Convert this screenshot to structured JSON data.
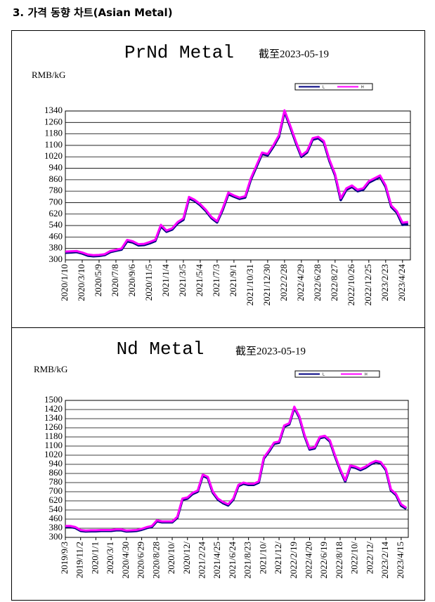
{
  "heading": "3. 가격 동향 차트(Asian Metal)",
  "chart_data": [
    {
      "type": "line",
      "title": "PrNd Metal",
      "subtitle": "截至2023-05-19",
      "y_label": "RMB/kG",
      "categories": [
        "2020/1/10",
        null,
        null,
        "2020/3/10",
        null,
        null,
        "2020/5/9",
        null,
        null,
        "2020/7/8",
        null,
        null,
        "2020/9/6",
        null,
        null,
        "2020/11/5",
        null,
        null,
        "2021/1/4",
        null,
        null,
        "2021/3/5",
        null,
        null,
        "2021/5/4",
        null,
        null,
        "2021/7/3",
        null,
        null,
        "2021/9/1",
        null,
        null,
        "2021/10/31",
        null,
        null,
        "2021/12/30",
        null,
        null,
        "2022/2/28",
        null,
        null,
        "2022/4/29",
        null,
        null,
        "2022/6/28",
        null,
        null,
        "2022/8/27",
        null,
        null,
        "2022/10/26",
        null,
        null,
        "2022/12/25",
        null,
        null,
        "2023/2/23",
        null,
        null,
        "2023/4/24",
        null
      ],
      "series": [
        {
          "name": "L",
          "color": "#000080",
          "values": [
            350,
            352,
            355,
            345,
            330,
            326,
            328,
            334,
            355,
            364,
            372,
            430,
            422,
            402,
            404,
            416,
            432,
            535,
            497,
            512,
            556,
            580,
            730,
            712,
            682,
            642,
            592,
            562,
            650,
            760,
            742,
            727,
            736,
            860,
            950,
            1040,
            1030,
            1090,
            1160,
            1335,
            1230,
            1120,
            1020,
            1050,
            1140,
            1150,
            1120,
            990,
            890,
            718,
            790,
            810,
            780,
            790,
            840,
            860,
            880,
            810,
            670,
            630,
            545,
            550
          ]
        },
        {
          "name": "H",
          "color": "#ff00ff",
          "values": [
            358,
            360,
            362,
            352,
            338,
            333,
            335,
            340,
            362,
            370,
            380,
            440,
            430,
            410,
            412,
            425,
            440,
            545,
            505,
            520,
            565,
            590,
            740,
            720,
            690,
            650,
            600,
            570,
            660,
            770,
            750,
            735,
            745,
            870,
            960,
            1050,
            1040,
            1100,
            1170,
            1345,
            1240,
            1130,
            1030,
            1060,
            1150,
            1160,
            1130,
            1000,
            900,
            730,
            800,
            820,
            790,
            800,
            850,
            870,
            890,
            820,
            680,
            640,
            560,
            565
          ]
        }
      ],
      "ylim": [
        300,
        1340
      ],
      "yticks": [
        300,
        380,
        460,
        540,
        620,
        700,
        780,
        860,
        940,
        1020,
        1100,
        1180,
        1260,
        1340
      ],
      "grid": true
    },
    {
      "type": "line",
      "title": "Nd Metal",
      "subtitle": "截至2023-05-19",
      "y_label": "RMB/kG",
      "categories": [
        "2019/9/3",
        null,
        null,
        "2019/11/2",
        null,
        null,
        "2020/1/1",
        null,
        null,
        "2020/3/1",
        null,
        null,
        "2020/4/30",
        null,
        null,
        "2020/6/29",
        null,
        null,
        "2020/8/28",
        null,
        null,
        "2020/10/",
        null,
        null,
        "2020/12/",
        null,
        null,
        "2021/2/24",
        null,
        null,
        "2021/4/25",
        null,
        null,
        "2021/6/24",
        null,
        null,
        "2021/8/23",
        null,
        null,
        "2021/10/",
        null,
        null,
        "2021/12/",
        null,
        null,
        "2022/2/19",
        null,
        null,
        "2022/4/20",
        null,
        null,
        "2022/6/19",
        null,
        null,
        "2022/8/18",
        null,
        null,
        "2022/10/",
        null,
        null,
        "2022/12/",
        null,
        null,
        "2023/2/14",
        null,
        null,
        "2023/4/15",
        null
      ],
      "series": [
        {
          "name": "L",
          "color": "#000080",
          "values": [
            392,
            392,
            382,
            357,
            352,
            354,
            354,
            357,
            357,
            357,
            362,
            362,
            352,
            354,
            357,
            367,
            382,
            392,
            442,
            432,
            432,
            432,
            472,
            630,
            640,
            680,
            700,
            840,
            820,
            690,
            630,
            600,
            580,
            630,
            750,
            770,
            760,
            760,
            780,
            990,
            1050,
            1120,
            1130,
            1270,
            1290,
            1435,
            1350,
            1190,
            1070,
            1080,
            1170,
            1180,
            1140,
            1010,
            890,
            790,
            920,
            910,
            890,
            910,
            940,
            960,
            950,
            890,
            710,
            670,
            578,
            550
          ]
        },
        {
          "name": "H",
          "color": "#ff00ff",
          "values": [
            400,
            400,
            390,
            365,
            360,
            362,
            362,
            365,
            365,
            365,
            370,
            370,
            360,
            362,
            365,
            375,
            390,
            400,
            450,
            440,
            440,
            440,
            480,
            640,
            650,
            690,
            710,
            850,
            830,
            700,
            640,
            610,
            590,
            640,
            760,
            780,
            770,
            770,
            790,
            1000,
            1060,
            1130,
            1140,
            1280,
            1300,
            1445,
            1360,
            1200,
            1080,
            1090,
            1180,
            1190,
            1150,
            1020,
            900,
            800,
            930,
            920,
            900,
            920,
            950,
            970,
            960,
            900,
            720,
            680,
            590,
            560
          ]
        }
      ],
      "ylim": [
        300,
        1500
      ],
      "yticks": [
        300,
        380,
        460,
        540,
        620,
        700,
        780,
        860,
        940,
        1020,
        1100,
        1180,
        1260,
        1340,
        1420,
        1500
      ],
      "grid": true
    }
  ]
}
